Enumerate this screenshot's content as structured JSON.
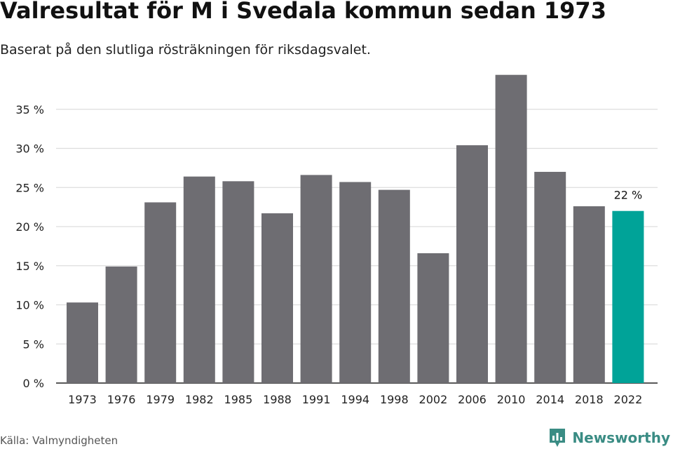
{
  "title": "Valresultat för M i Svedala kommun sedan 1973",
  "subtitle": "Baserat på den slutliga rösträkningen för riksdagsvalet.",
  "source": "Källa: Valmyndigheten",
  "brand": {
    "name": "Newsworthy",
    "color": "#3a8c84",
    "icon": "newsworthy-logo-icon"
  },
  "colors": {
    "bar": "#6e6d72",
    "highlight": "#00a398",
    "grid": "#dddddd",
    "axis": "#222222"
  },
  "chart_data": {
    "type": "bar",
    "categories": [
      "1973",
      "1976",
      "1979",
      "1982",
      "1985",
      "1988",
      "1991",
      "1994",
      "1998",
      "2002",
      "2006",
      "2010",
      "2014",
      "2018",
      "2022"
    ],
    "values": [
      10.3,
      14.9,
      23.1,
      26.4,
      25.8,
      21.7,
      26.6,
      25.7,
      24.7,
      16.6,
      30.4,
      39.4,
      27.0,
      22.6,
      22.0
    ],
    "highlight_index": 14,
    "highlight_label": "22 %",
    "yticks": [
      "0 %",
      "5 %",
      "10 %",
      "15 %",
      "20 %",
      "25 %",
      "30 %",
      "35 %"
    ],
    "ytick_values": [
      0,
      5,
      10,
      15,
      20,
      25,
      30,
      35
    ],
    "ylim": [
      0,
      40
    ],
    "grid": true
  }
}
